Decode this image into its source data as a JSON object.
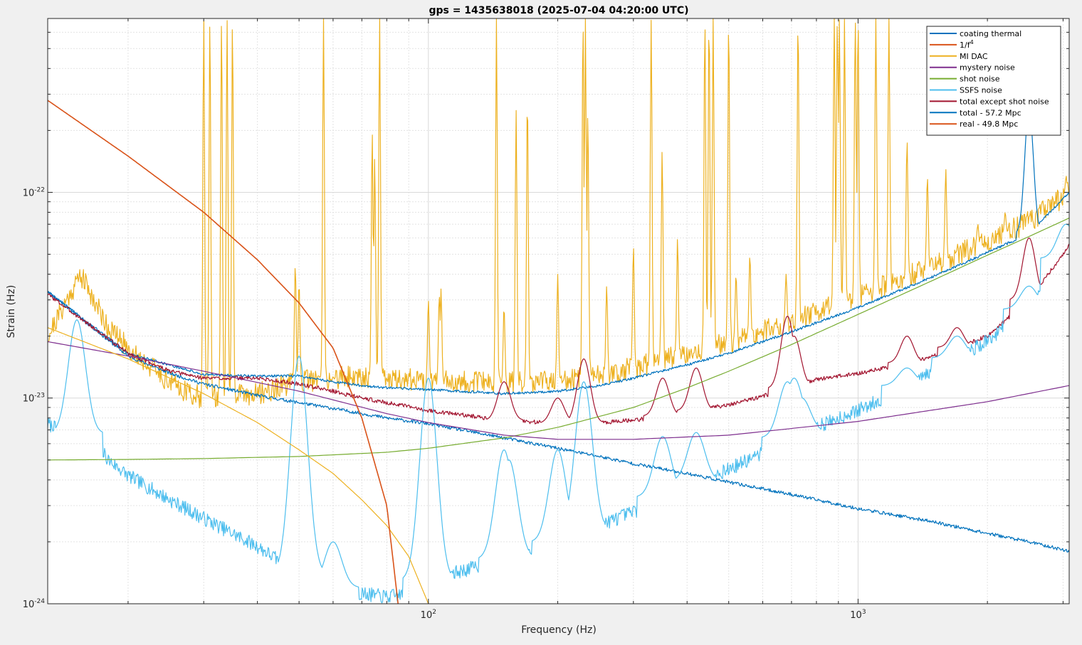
{
  "chart_data": {
    "type": "line",
    "title": "gps = 1435638018 (2025-07-04 04:20:00 UTC)",
    "xlabel": "Frequency (Hz)",
    "ylabel": "Strain (Hz)",
    "xscale": "log",
    "yscale": "log",
    "xlim": [
      13,
      3100
    ],
    "ylim": [
      1e-24,
      7e-22
    ],
    "xticks": [
      {
        "value": 100,
        "label_base": "10",
        "label_exp": "2"
      },
      {
        "value": 1000,
        "label_base": "10",
        "label_exp": "3"
      }
    ],
    "yticks": [
      {
        "value": 1e-24,
        "label_base": "10",
        "label_exp": "-24"
      },
      {
        "value": 1e-23,
        "label_base": "10",
        "label_exp": "-23"
      },
      {
        "value": 1e-22,
        "label_base": "10",
        "label_exp": "-22"
      }
    ],
    "grid": true,
    "legend_position": "top-right",
    "series": [
      {
        "name": "coating thermal",
        "legend_sup": "",
        "color": "#0072bd",
        "style": "noisy",
        "seed": 11,
        "noise": 0.008,
        "x": [
          13,
          20,
          25,
          30,
          40,
          50,
          60,
          80,
          100,
          150,
          200,
          250,
          300,
          400,
          500,
          700,
          1000,
          1500,
          2000,
          2500,
          3100
        ],
        "y": [
          3.3e-23,
          1.6e-23,
          1.32e-23,
          1.17e-23,
          1.03e-23,
          9.5e-24,
          8.9e-24,
          8e-24,
          7.5e-24,
          6.4e-24,
          5.7e-24,
          5.2e-24,
          4.8e-24,
          4.3e-24,
          3.9e-24,
          3.4e-24,
          2.9e-24,
          2.5e-24,
          2.2e-24,
          2e-24,
          1.8e-24
        ],
        "peaks": [],
        "peak_width": 0.01
      },
      {
        "name": "1/f",
        "legend_sup": "4",
        "color": "#d95319",
        "style": "plain",
        "x": [
          13,
          20,
          30,
          40,
          50,
          60,
          70,
          80,
          85
        ],
        "y": [
          2.8e-22,
          1.5e-22,
          8e-23,
          4.7e-23,
          2.9e-23,
          1.75e-23,
          8e-24,
          3e-24,
          1e-24
        ],
        "peaks": []
      },
      {
        "name": "MI DAC",
        "legend_sup": "",
        "color": "#edb120",
        "style": "plain",
        "x": [
          13,
          20,
          30,
          40,
          50,
          60,
          70,
          80,
          90,
          100
        ],
        "y": [
          2.2e-23,
          1.55e-23,
          1.05e-23,
          7.6e-24,
          5.6e-24,
          4.3e-24,
          3.2e-24,
          2.4e-24,
          1.7e-24,
          1e-24
        ],
        "peaks": []
      },
      {
        "name": "mystery noise",
        "legend_sup": "",
        "color": "#7e2f8e",
        "style": "plain",
        "x": [
          13,
          20,
          30,
          50,
          80,
          100,
          150,
          200,
          250,
          300,
          500,
          1000,
          2000,
          3100
        ],
        "y": [
          1.88e-23,
          1.6e-23,
          1.35e-23,
          1.08e-23,
          8.4e-24,
          7.6e-24,
          6.6e-24,
          6.3e-24,
          6.3e-24,
          6.3e-24,
          6.6e-24,
          7.7e-24,
          9.6e-24,
          1.15e-23
        ],
        "peaks": []
      },
      {
        "name": "shot noise",
        "legend_sup": "",
        "color": "#77ac30",
        "style": "plain",
        "x": [
          13,
          20,
          30,
          50,
          80,
          100,
          150,
          200,
          300,
          400,
          500,
          700,
          1000,
          1500,
          2000,
          2500,
          3100
        ],
        "y": [
          5e-24,
          5.03e-24,
          5.08e-24,
          5.2e-24,
          5.45e-24,
          5.7e-24,
          6.4e-24,
          7.2e-24,
          9e-24,
          1.12e-23,
          1.35e-23,
          1.82e-23,
          2.55e-23,
          3.75e-23,
          4.95e-23,
          6.1e-23,
          7.5e-23
        ],
        "peaks": []
      },
      {
        "name": "SSFS noise",
        "legend_sup": "",
        "color": "#4dbeee",
        "style": "noisy",
        "seed": 7,
        "noise": 0.035,
        "x": [
          13,
          14.5,
          16,
          18,
          20,
          25,
          30,
          40,
          50,
          60,
          70,
          80,
          90,
          100,
          150,
          200,
          300,
          400,
          500,
          600,
          700,
          800,
          900,
          1000,
          1200,
          1500,
          2000,
          2500,
          3100
        ],
        "y": [
          7.5e-24,
          6.5e-24,
          7e-24,
          5e-24,
          4.2e-24,
          3.2e-24,
          2.6e-24,
          1.9e-24,
          1.4e-24,
          1.2e-24,
          1.12e-24,
          1.08e-24,
          1.12e-24,
          1.3e-24,
          1.65e-24,
          2e-24,
          2.8e-24,
          3.8e-24,
          4.5e-24,
          5.4e-24,
          6.6e-24,
          7.2e-24,
          8e-24,
          8.7e-24,
          1.05e-23,
          1.35e-23,
          1.9e-23,
          2.7e-23,
          5e-23
        ],
        "peaks": [
          [
            15.2,
            2.4e-23
          ],
          [
            50,
            1.6e-23
          ],
          [
            60,
            2e-24
          ],
          [
            100,
            1.25e-23
          ],
          [
            150,
            5.6e-24
          ],
          [
            154,
            5e-24
          ],
          [
            200,
            5.6e-24
          ],
          [
            230,
            1.2e-23
          ],
          [
            351,
            6.5e-24
          ],
          [
            420,
            6.8e-24
          ],
          [
            685,
            1.2e-23
          ],
          [
            710,
            1.25e-23
          ],
          [
            740,
            1e-23
          ],
          [
            1300,
            1.4e-23
          ],
          [
            1700,
            2e-23
          ],
          [
            2500,
            3.5e-23
          ],
          [
            3050,
            7e-23
          ]
        ],
        "peak_width": 0.02
      },
      {
        "name": "total except shot noise",
        "legend_sup": "",
        "color": "#a2142f",
        "style": "noisy",
        "seed": 3,
        "noise": 0.01,
        "x": [
          13,
          20,
          25,
          30,
          40,
          50,
          60,
          70,
          80,
          100,
          150,
          200,
          250,
          300,
          400,
          500,
          600,
          700,
          800,
          1000,
          1200,
          1500,
          2000,
          2500,
          3100
        ],
        "y": [
          3.2e-23,
          1.65e-23,
          1.35e-23,
          1.25e-23,
          1.25e-23,
          1.17e-23,
          1.08e-23,
          1e-23,
          9.5e-24,
          8.7e-24,
          7.8e-24,
          7.55e-24,
          7.6e-24,
          7.8e-24,
          8.5e-24,
          9.3e-24,
          1.02e-23,
          1.13e-23,
          1.23e-23,
          1.32e-23,
          1.42e-23,
          1.6e-23,
          2e-23,
          3e-23,
          5.5e-23
        ],
        "peaks": [
          [
            150,
            1.2e-23
          ],
          [
            200,
            1e-23
          ],
          [
            230,
            1.55e-23
          ],
          [
            351,
            1.25e-23
          ],
          [
            420,
            1.4e-23
          ],
          [
            685,
            2.5e-23
          ],
          [
            710,
            2e-23
          ],
          [
            1300,
            2e-23
          ],
          [
            1700,
            2.2e-23
          ],
          [
            2500,
            6e-23
          ]
        ],
        "peak_width": 0.015
      },
      {
        "name": "total - 57.2 Mpc",
        "legend_sup": "",
        "color": "#0072bd",
        "style": "noisy",
        "seed": 5,
        "noise": 0.006,
        "x": [
          13,
          20,
          30,
          40,
          50,
          60,
          70,
          80,
          100,
          150,
          200,
          250,
          300,
          400,
          500,
          700,
          1000,
          1500,
          2000,
          2500,
          3100
        ],
        "y": [
          3.3e-23,
          1.65e-23,
          1.3e-23,
          1.28e-23,
          1.28e-23,
          1.2e-23,
          1.15e-23,
          1.12e-23,
          1.1e-23,
          1.05e-23,
          1.08e-23,
          1.15e-23,
          1.25e-23,
          1.45e-23,
          1.65e-23,
          2.1e-23,
          2.75e-23,
          3.9e-23,
          5.1e-23,
          6.3e-23,
          1e-22
        ],
        "peaks": [
          [
            2500,
            2.6e-22
          ]
        ],
        "peak_width": 0.01
      },
      {
        "name": "real - 49.8 Mpc",
        "legend_sup": "",
        "color": "#edb120",
        "style": "noisy",
        "seed": 21,
        "noise": 0.055,
        "x": [
          13,
          15.5,
          18,
          20,
          25,
          28,
          30,
          40,
          50,
          60,
          70,
          80,
          100,
          150,
          200,
          250,
          300,
          400,
          500,
          700,
          1000,
          1500,
          2000,
          2500,
          3100
        ],
        "y": [
          2e-23,
          4e-23,
          2.2e-23,
          1.75e-23,
          1.2e-23,
          1.05e-23,
          1e-23,
          1.05e-23,
          1.2e-23,
          1.25e-23,
          1.28e-23,
          1.25e-23,
          1.22e-23,
          1.18e-23,
          1.2e-23,
          1.3e-23,
          1.4e-23,
          1.65e-23,
          1.85e-23,
          2.35e-23,
          3.1e-23,
          4.4e-23,
          5.8e-23,
          7.2e-23,
          1e-22
        ],
        "peaks": [
          [
            30,
            7e-22
          ],
          [
            31,
            7e-22
          ],
          [
            33,
            7e-22
          ],
          [
            34,
            7e-22
          ],
          [
            35,
            7e-22
          ],
          [
            49,
            4.5e-23
          ],
          [
            50,
            3.7e-23
          ],
          [
            57,
            7e-22
          ],
          [
            74,
            2e-22
          ],
          [
            75,
            1.5e-22
          ],
          [
            77,
            7e-22
          ],
          [
            100,
            3e-23
          ],
          [
            106,
            3.2e-23
          ],
          [
            107,
            3.4e-23
          ],
          [
            144,
            7e-22
          ],
          [
            150,
            2.8e-23
          ],
          [
            160,
            2.5e-22
          ],
          [
            170,
            3e-22
          ],
          [
            200,
            4e-23
          ],
          [
            229,
            7e-22
          ],
          [
            232,
            7e-22
          ],
          [
            235,
            2.5e-22
          ],
          [
            260,
            3.5e-23
          ],
          [
            300,
            5.5e-23
          ],
          [
            330,
            7e-22
          ],
          [
            350,
            1.6e-22
          ],
          [
            380,
            6e-23
          ],
          [
            440,
            7e-22
          ],
          [
            450,
            7e-22
          ],
          [
            460,
            7e-22
          ],
          [
            500,
            7e-22
          ],
          [
            520,
            4e-23
          ],
          [
            560,
            5e-23
          ],
          [
            680,
            4e-23
          ],
          [
            725,
            7e-22
          ],
          [
            880,
            7e-22
          ],
          [
            895,
            7e-22
          ],
          [
            905,
            7e-22
          ],
          [
            930,
            7e-22
          ],
          [
            985,
            7e-22
          ],
          [
            1000,
            7e-22
          ],
          [
            1100,
            7e-22
          ],
          [
            1180,
            7e-22
          ],
          [
            1300,
            1.8e-22
          ],
          [
            1450,
            1.2e-22
          ],
          [
            1600,
            1.3e-22
          ],
          [
            1900,
            7e-23
          ],
          [
            2200,
            8e-23
          ],
          [
            2500,
            7e-23
          ],
          [
            3050,
            1.2e-22
          ]
        ],
        "peak_width": 0.002
      }
    ]
  }
}
